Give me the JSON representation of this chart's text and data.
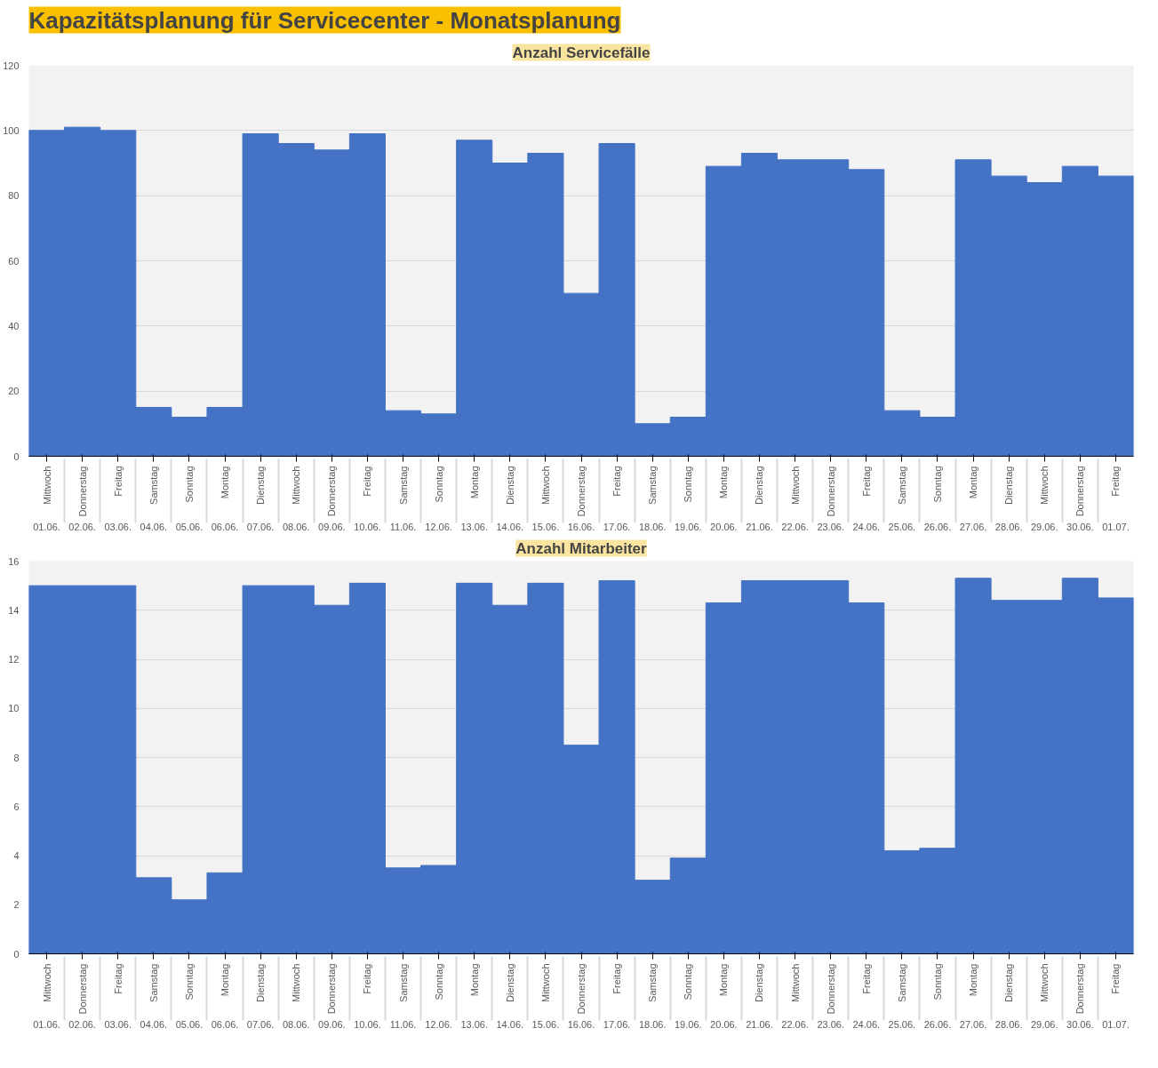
{
  "chart_data": [
    {
      "type": "bar",
      "title": "Kapazitätsplanung für Servicecenter - Monatsplanung",
      "subtitle": "Anzahl Servicefälle",
      "color": "#4472c4",
      "grid": "y",
      "ylim": [
        0,
        120
      ],
      "yticks": [
        0,
        20,
        40,
        60,
        80,
        100,
        120
      ],
      "categories": [
        "Mittwoch 01.06.",
        "Donnerstag 02.06.",
        "Freitag 03.06.",
        "Samstag 04.06.",
        "Sonntag 05.06.",
        "Montag 06.06.",
        "Dienstag 07.06.",
        "Mittwoch 08.06.",
        "Donnerstag 09.06.",
        "Freitag 10.06.",
        "Samstag 11.06.",
        "Sonntag 12.06.",
        "Montag 13.06.",
        "Dienstag 14.06.",
        "Mittwoch 15.06.",
        "Donnerstag 16.06.",
        "Freitag 17.06.",
        "Samstag 18.06.",
        "Sonntag 19.06.",
        "Montag 20.06.",
        "Dienstag 21.06.",
        "Mittwoch 22.06.",
        "Donnerstag 23.06.",
        "Freitag 24.06.",
        "Samstag 25.06.",
        "Sonntag 26.06.",
        "Montag 27.06.",
        "Dienstag 28.06.",
        "Mittwoch 29.06.",
        "Donnerstag 30.06.",
        "Freitag 01.07."
      ],
      "values": [
        100,
        101,
        100,
        15,
        12,
        15,
        99,
        96,
        94,
        99,
        14,
        13,
        97,
        90,
        93,
        50,
        96,
        10,
        12,
        89,
        93,
        91,
        91,
        88,
        14,
        12,
        91,
        86,
        84,
        89,
        86
      ]
    },
    {
      "type": "bar",
      "title": "Anzahl Mitarbeiter",
      "color": "#4472c4",
      "grid": "y",
      "ylim": [
        0,
        16
      ],
      "yticks": [
        0,
        2,
        4,
        6,
        8,
        10,
        12,
        14,
        16
      ],
      "categories": [
        "Mittwoch 01.06.",
        "Donnerstag 02.06.",
        "Freitag 03.06.",
        "Samstag 04.06.",
        "Sonntag 05.06.",
        "Montag 06.06.",
        "Dienstag 07.06.",
        "Mittwoch 08.06.",
        "Donnerstag 09.06.",
        "Freitag 10.06.",
        "Samstag 11.06.",
        "Sonntag 12.06.",
        "Montag 13.06.",
        "Dienstag 14.06.",
        "Mittwoch 15.06.",
        "Donnerstag 16.06.",
        "Freitag 17.06.",
        "Samstag 18.06.",
        "Sonntag 19.06.",
        "Montag 20.06.",
        "Dienstag 21.06.",
        "Mittwoch 22.06.",
        "Donnerstag 23.06.",
        "Freitag 24.06.",
        "Samstag 25.06.",
        "Sonntag 26.06.",
        "Montag 27.06.",
        "Dienstag 28.06.",
        "Mittwoch 29.06.",
        "Donnerstag 30.06.",
        "Freitag 01.07."
      ],
      "values": [
        15,
        15,
        15,
        3.1,
        2.2,
        3.3,
        15,
        15,
        14.2,
        15.1,
        3.5,
        3.6,
        15.1,
        14.2,
        15.1,
        8.5,
        15.2,
        3.0,
        3.9,
        14.3,
        15.2,
        15.2,
        15.2,
        14.3,
        4.2,
        4.3,
        15.3,
        14.4,
        14.4,
        15.3,
        14.5
      ]
    }
  ]
}
